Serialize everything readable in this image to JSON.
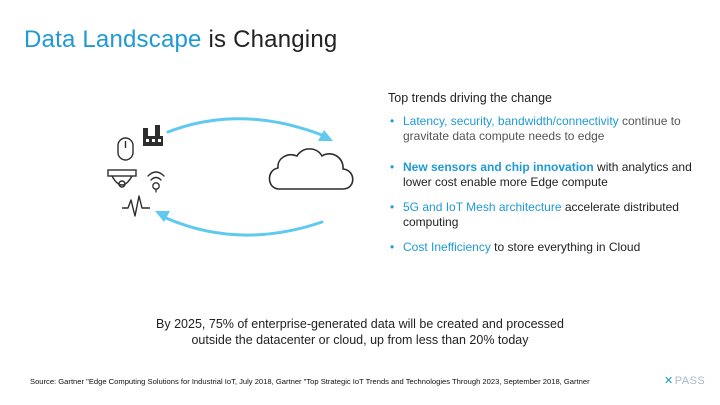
{
  "title": {
    "accent": "Data Landscape",
    "rest": " is Changing"
  },
  "trends": {
    "heading": "Top trends driving the change",
    "items": [
      {
        "accent": "Latency, security, bandwidth/connectivity",
        "rest": " continue to gravitate data compute needs to edge"
      },
      {
        "accent": "New sensors and chip innovation",
        "rest": " with analytics and lower cost enable more Edge compute"
      },
      {
        "accent": "5G and IoT Mesh architecture",
        "rest": " accelerate distributed computing"
      },
      {
        "accent": "Cost Inefficiency",
        "rest": " to store everything in Cloud"
      }
    ]
  },
  "summary": "By 2025, 75% of enterprise-generated data will be created and processed outside the datacenter or cloud, up from less than 20% today",
  "source": "Source: Gartner \"Edge Computing Solutions for Industrial IoT, July 2018, Gartner \"Top Strategic IoT Trends and Technologies Through 2023, September 2018, Gartner",
  "logo": {
    "mark": "✕",
    "text": "PASS"
  },
  "icons": [
    "mouse-icon",
    "factory-icon",
    "security-camera-icon",
    "smart-lightbulb-icon",
    "heartbeat-icon",
    "cloud-icon"
  ],
  "colors": {
    "accent": "#1e9ad6",
    "arrow": "#5fc9ef",
    "icon": "#2d2d2d"
  }
}
